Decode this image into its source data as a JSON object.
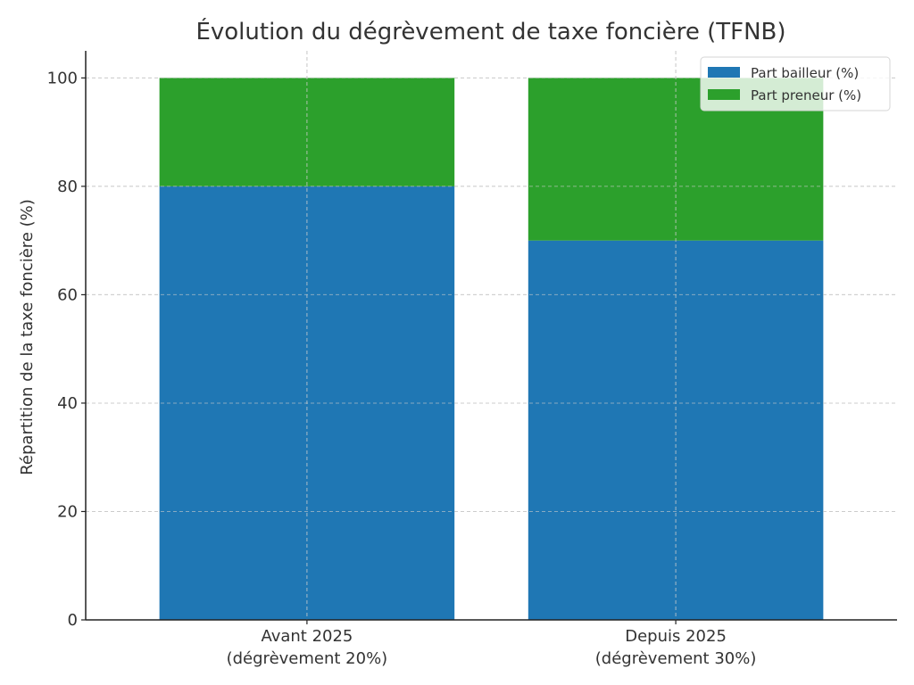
{
  "chart_data": {
    "type": "bar",
    "stacked": true,
    "title": "Évolution du dégrèvement de taxe foncière (TFNB)",
    "xlabel": "",
    "ylabel": "Répartition de la taxe foncière (%)",
    "ylim": [
      0,
      105
    ],
    "yticks": [
      0,
      20,
      40,
      60,
      80,
      100
    ],
    "categories": [
      [
        "Avant 2025",
        "(dégrèvement 20%)"
      ],
      [
        "Depuis 2025",
        "(dégrèvement 30%)"
      ]
    ],
    "series": [
      {
        "name": "Part bailleur (%)",
        "color": "#1f77b4",
        "values": [
          80,
          70
        ]
      },
      {
        "name": "Part preneur (%)",
        "color": "#2ca02c",
        "values": [
          20,
          30
        ]
      }
    ],
    "grid": true,
    "legend_position": "top-right"
  }
}
